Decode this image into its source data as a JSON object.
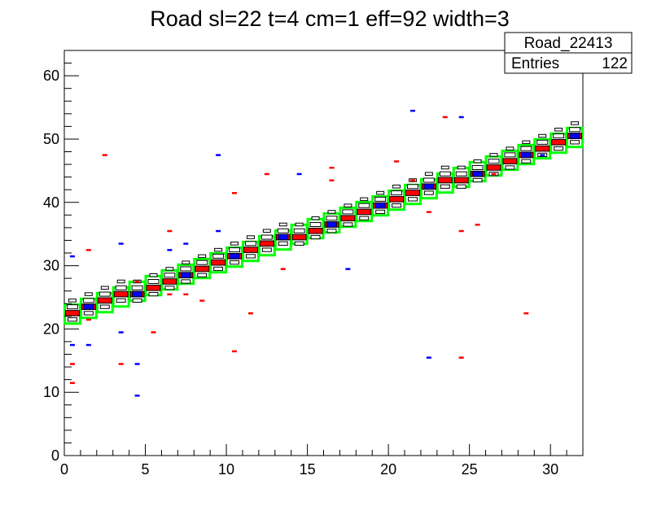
{
  "chart_data": {
    "type": "heatmap",
    "title": "Road sl=22 t=4 cm=1 eff=92 width=3",
    "xlabel": "",
    "ylabel": "",
    "xlim": [
      0,
      32
    ],
    "ylim": [
      0,
      64
    ],
    "x_ticks": [
      "0",
      "5",
      "10",
      "15",
      "20",
      "25",
      "30"
    ],
    "y_ticks": [
      "0",
      "10",
      "20",
      "30",
      "40",
      "50",
      "60"
    ],
    "grid": false,
    "stats_box": {
      "name": "Road_22413",
      "entries_label": "Entries",
      "entries_value": "122"
    },
    "colors": {
      "road": "#00ff00",
      "hit_red": "#ff0000",
      "hit_blue": "#0000ff",
      "box": "#000000"
    },
    "road": {
      "start_y": 22,
      "slope": 0.9,
      "half_width": 1.5
    },
    "red_hits": [
      [
        0.5,
        11.5
      ],
      [
        0.5,
        14.5
      ],
      [
        1.5,
        21.5
      ],
      [
        1.5,
        32.5
      ],
      [
        2.5,
        47.5
      ],
      [
        3.5,
        14.5
      ],
      [
        4.5,
        27.5
      ],
      [
        5.5,
        19.5
      ],
      [
        6.5,
        35.5
      ],
      [
        6.5,
        25.5
      ],
      [
        7.5,
        25.5
      ],
      [
        8.5,
        24.5
      ],
      [
        10.5,
        41.5
      ],
      [
        10.5,
        16.5
      ],
      [
        11.5,
        22.5
      ],
      [
        12.5,
        44.5
      ],
      [
        13.5,
        29.5
      ],
      [
        16.5,
        45.5
      ],
      [
        16.5,
        43.5
      ],
      [
        20.5,
        46.5
      ],
      [
        21.5,
        43.5
      ],
      [
        22.5,
        38.5
      ],
      [
        23.5,
        53.5
      ],
      [
        24.5,
        35.5
      ],
      [
        24.5,
        15.5
      ],
      [
        25.5,
        36.5
      ],
      [
        26.5,
        44.5
      ],
      [
        28.5,
        22.5
      ],
      [
        29.5,
        48.5
      ]
    ],
    "blue_hits": [
      [
        0.5,
        17.5
      ],
      [
        0.5,
        31.5
      ],
      [
        1.5,
        17.5
      ],
      [
        3.5,
        33.5
      ],
      [
        3.5,
        19.5
      ],
      [
        4.5,
        14.5
      ],
      [
        4.5,
        9.5
      ],
      [
        6.5,
        32.5
      ],
      [
        7.5,
        33.5
      ],
      [
        9.5,
        47.5
      ],
      [
        9.5,
        35.5
      ],
      [
        14.5,
        44.5
      ],
      [
        17.5,
        29.5
      ],
      [
        21.5,
        54.5
      ],
      [
        22.5,
        15.5
      ],
      [
        24.5,
        53.5
      ],
      [
        29.5,
        47.5
      ]
    ]
  }
}
